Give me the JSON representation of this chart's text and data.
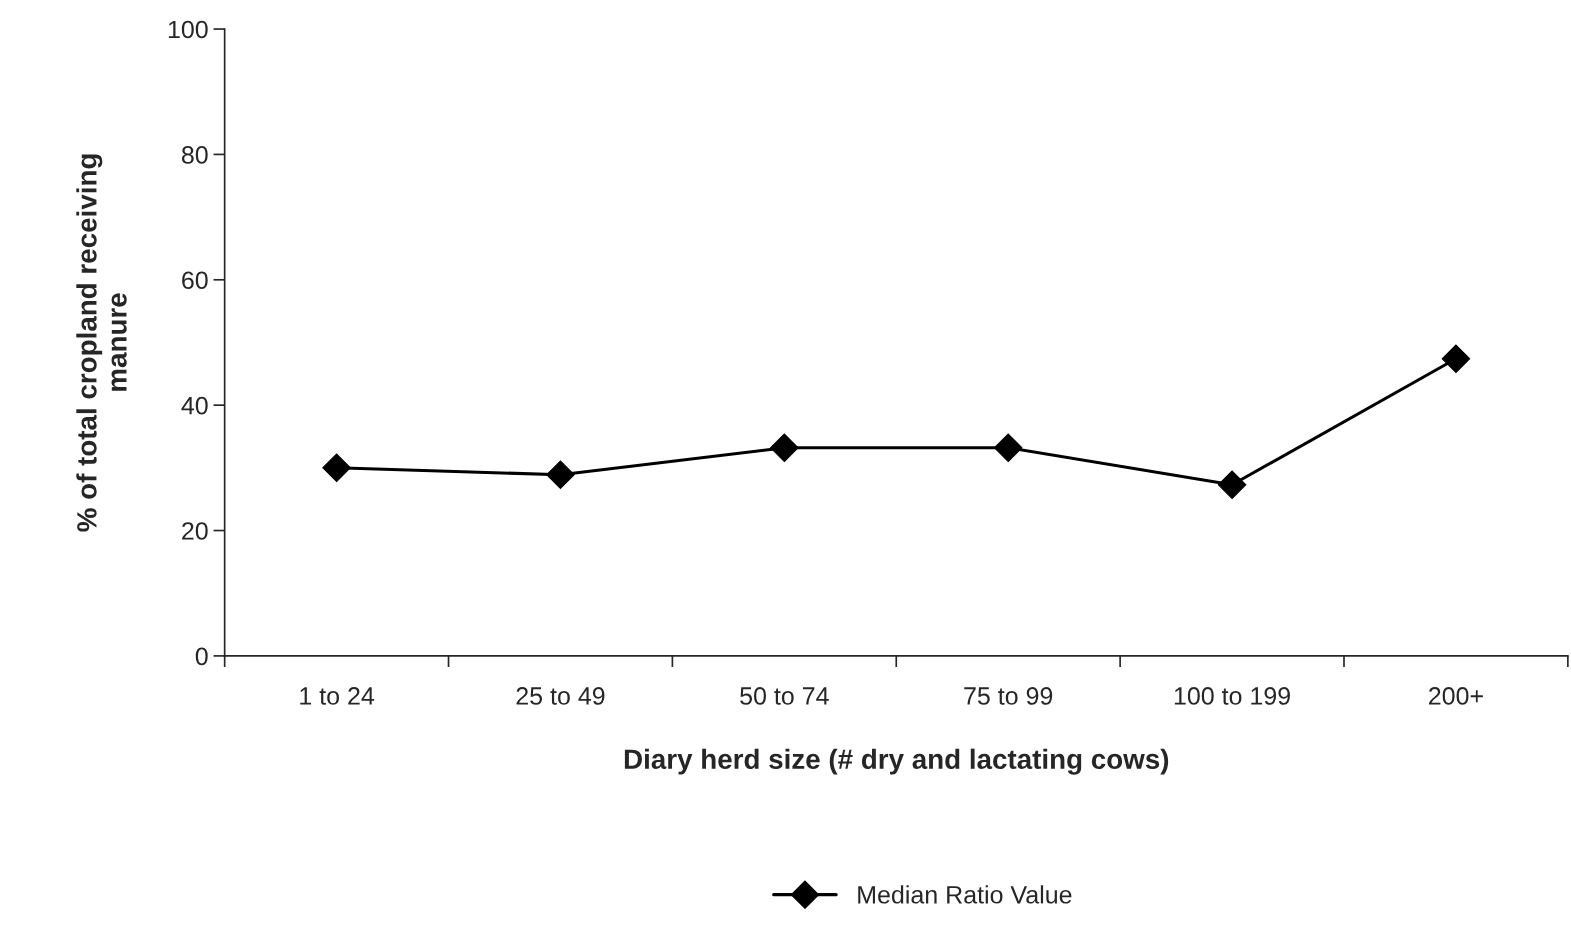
{
  "chart_data": {
    "type": "line",
    "xlabel": "Diary herd size (# dry and lactating cows)",
    "ylabel": "% of total cropland receiving\nmanure",
    "categories": [
      "1 to 24",
      "25 to 49",
      "50 to 74",
      "75 to 99",
      "100 to 199",
      "200+"
    ],
    "series": [
      {
        "name": "Median Ratio Value",
        "color": "#000000",
        "values": [
          30.0,
          28.9,
          33.2,
          33.2,
          27.3,
          47.4
        ]
      }
    ],
    "ylim": [
      0,
      100
    ],
    "yticks": [
      0,
      20,
      40,
      60,
      80,
      100
    ],
    "marker": "diamond",
    "line_style": "solid",
    "grid": false,
    "legend": "bottom"
  }
}
